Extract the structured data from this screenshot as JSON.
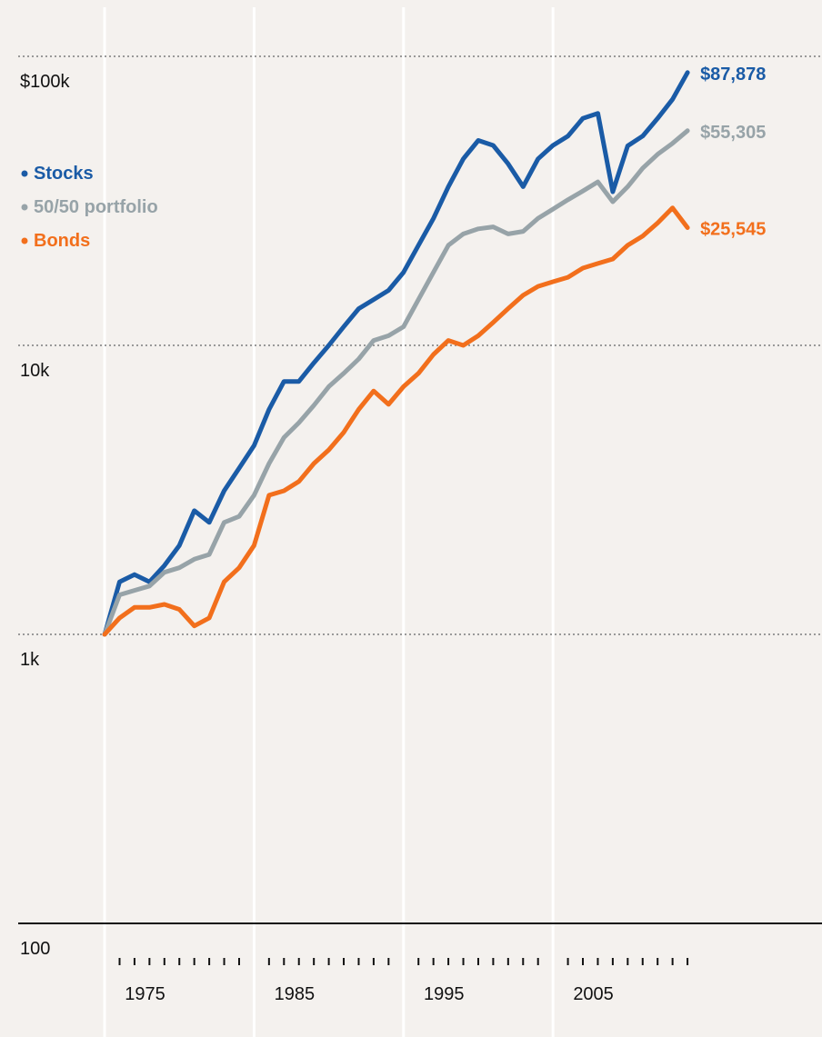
{
  "chart_data": {
    "type": "line",
    "log_y": true,
    "x": [
      1970,
      1971,
      1972,
      1973,
      1974,
      1975,
      1976,
      1977,
      1978,
      1979,
      1980,
      1981,
      1982,
      1983,
      1984,
      1985,
      1986,
      1987,
      1988,
      1989,
      1990,
      1991,
      1992,
      1993,
      1994,
      1995,
      1996,
      1997,
      1998,
      1999,
      2000,
      2001,
      2002,
      2003,
      2004,
      2005,
      2006,
      2007,
      2008,
      2009
    ],
    "series": [
      {
        "name": "Stocks",
        "color": "#1a5ba6",
        "end_label": "$87,878",
        "values": [
          1000,
          1520,
          1610,
          1520,
          1730,
          2030,
          2680,
          2440,
          3140,
          3760,
          4500,
          6000,
          7500,
          7500,
          8700,
          10000,
          11600,
          13400,
          14400,
          15500,
          17900,
          22200,
          27500,
          35400,
          44200,
          51200,
          49200,
          42500,
          35400,
          44200,
          49200,
          53000,
          61000,
          63500,
          34000,
          49000,
          53000,
          61000,
          71000,
          87878
        ]
      },
      {
        "name": "50/50 portfolio",
        "color": "#97a3a8",
        "end_label": "$55,305",
        "values": [
          1000,
          1370,
          1420,
          1470,
          1640,
          1700,
          1820,
          1890,
          2440,
          2560,
          3030,
          3900,
          4800,
          5400,
          6200,
          7200,
          8000,
          8970,
          10400,
          10800,
          11600,
          14400,
          17900,
          22200,
          24300,
          25300,
          25700,
          24300,
          24800,
          27500,
          29600,
          31900,
          34200,
          36800,
          31400,
          35400,
          41000,
          45800,
          50000,
          55305
        ]
      },
      {
        "name": "Bonds",
        "color": "#f26f1c",
        "end_label": "$25,545",
        "values": [
          1000,
          1140,
          1240,
          1240,
          1270,
          1220,
          1070,
          1140,
          1520,
          1700,
          2030,
          3030,
          3140,
          3380,
          3900,
          4350,
          5000,
          6000,
          6950,
          6250,
          7200,
          8000,
          9300,
          10400,
          10000,
          10800,
          12000,
          13400,
          14900,
          16000,
          16600,
          17200,
          18500,
          19200,
          19900,
          22200,
          23900,
          26500,
          29900,
          25545
        ]
      }
    ],
    "xlim": [
      1963,
      2018
    ],
    "ylim": [
      100,
      100000
    ],
    "yticks": [
      {
        "value": 100,
        "label": "100"
      },
      {
        "value": 1000,
        "label": "1k"
      },
      {
        "value": 10000,
        "label": "10k"
      },
      {
        "value": 100000,
        "label": "$100k"
      }
    ],
    "xgrid": [
      1970,
      1980,
      1990,
      2000
    ],
    "xticks": [
      1975,
      1985,
      1995,
      2005
    ],
    "xminor_ticks": [
      1971,
      1972,
      1973,
      1974,
      1975,
      1976,
      1977,
      1978,
      1979,
      1981,
      1982,
      1983,
      1984,
      1985,
      1986,
      1987,
      1988,
      1989,
      1991,
      1992,
      1993,
      1994,
      1995,
      1996,
      1997,
      1998,
      1999,
      2001,
      2002,
      2003,
      2004,
      2005,
      2006,
      2007,
      2008,
      2009
    ],
    "legend": "upper left"
  }
}
